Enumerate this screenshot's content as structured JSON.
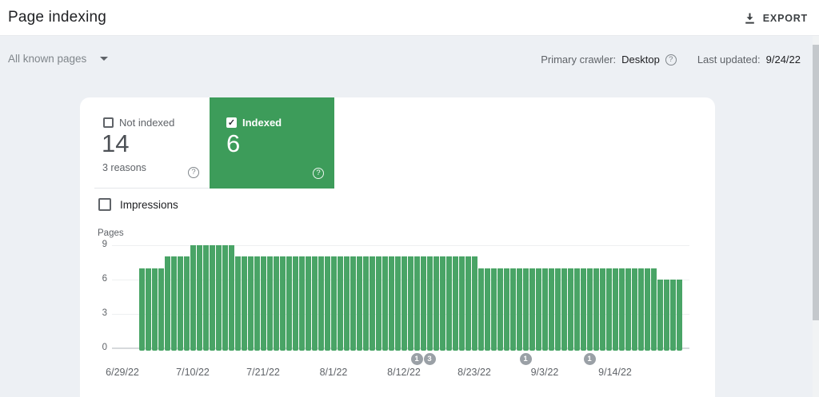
{
  "header": {
    "title": "Page indexing",
    "export_label": "EXPORT"
  },
  "filters": {
    "page_filter": "All known pages",
    "primary_crawler_label": "Primary crawler:",
    "primary_crawler_value": "Desktop",
    "last_updated_label": "Last updated:",
    "last_updated_value": "9/24/22"
  },
  "tiles": {
    "not_indexed": {
      "label": "Not indexed",
      "value": "14",
      "sub": "3 reasons",
      "checked": false
    },
    "indexed": {
      "label": "Indexed",
      "value": "6",
      "checked": true,
      "check_glyph": "✓"
    }
  },
  "impressions": {
    "label": "Impressions",
    "checked": false
  },
  "colors": {
    "indexed_tile_green": "#3d9c5a",
    "bar_green": "#49a466",
    "marker_gray": "#9aa0a6"
  },
  "chart_data": {
    "type": "bar",
    "title": "",
    "xlabel": "",
    "ylabel": "Pages",
    "ylim": [
      0,
      9
    ],
    "yticks": [
      0,
      3,
      6,
      9
    ],
    "grid": true,
    "axis_start_date": "6/29/22",
    "end_date": "9/24/22",
    "start_day": 3,
    "x_ticks": [
      {
        "label": "6/29/22",
        "day": 0
      },
      {
        "label": "7/10/22",
        "day": 11
      },
      {
        "label": "7/21/22",
        "day": 22
      },
      {
        "label": "8/1/22",
        "day": 33
      },
      {
        "label": "8/12/22",
        "day": 44
      },
      {
        "label": "8/23/22",
        "day": 55
      },
      {
        "label": "9/3/22",
        "day": 66
      },
      {
        "label": "9/14/22",
        "day": 77
      }
    ],
    "values": [
      7,
      7,
      7,
      7,
      8,
      8,
      8,
      8,
      9,
      9,
      9,
      9,
      9,
      9,
      9,
      8,
      8,
      8,
      8,
      8,
      8,
      8,
      8,
      8,
      8,
      8,
      8,
      8,
      8,
      8,
      8,
      8,
      8,
      8,
      8,
      8,
      8,
      8,
      8,
      8,
      8,
      8,
      8,
      8,
      8,
      8,
      8,
      8,
      8,
      8,
      8,
      8,
      8,
      7,
      7,
      7,
      7,
      7,
      7,
      7,
      7,
      7,
      7,
      7,
      7,
      7,
      7,
      7,
      7,
      7,
      7,
      7,
      7,
      7,
      7,
      7,
      7,
      7,
      7,
      7,
      7,
      6,
      6,
      6,
      6
    ],
    "markers": [
      {
        "label": "1",
        "day": 46
      },
      {
        "label": "3",
        "day": 48
      },
      {
        "label": "1",
        "day": 63
      },
      {
        "label": "1",
        "day": 73
      }
    ]
  }
}
